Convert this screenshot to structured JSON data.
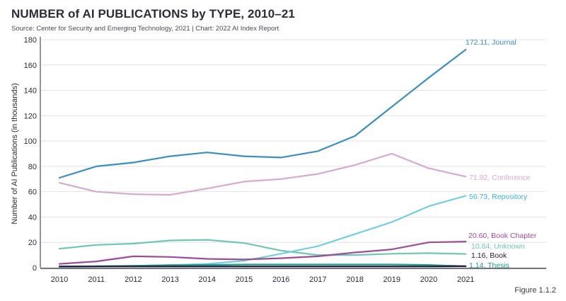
{
  "title": "NUMBER of AI PUBLICATIONS by TYPE, 2010–21",
  "subtitle": "Source: Center for Security and Emerging Technology, 2021 | Chart: 2022 AI Index Report",
  "footnote": "Figure 1.1.2",
  "chart_data": {
    "type": "line",
    "title": "NUMBER of AI PUBLICATIONS by TYPE, 2010–21",
    "xlabel": "",
    "ylabel": "Number of AI Publications (in thousands)",
    "x": [
      "2010",
      "2011",
      "2012",
      "2013",
      "2014",
      "2015",
      "2016",
      "2017",
      "2018",
      "2019",
      "2020",
      "2021"
    ],
    "ylim": [
      0,
      180
    ],
    "yticks": [
      0,
      20,
      40,
      60,
      80,
      100,
      120,
      140,
      160,
      180
    ],
    "grid": "horizontal",
    "legend": "end-of-line labels",
    "series": [
      {
        "name": "Journal",
        "end_label": "172.11, Journal",
        "color": "#3b8fc0",
        "label_color": "#3b8fc0",
        "values": [
          71,
          80,
          83,
          88,
          91,
          88,
          87,
          92,
          104,
          127,
          150,
          172.11
        ]
      },
      {
        "name": "Conference",
        "end_label": "71.92, Conference",
        "color": "#d7a9d1",
        "label_color": "#d7a9d1",
        "values": [
          67,
          60,
          58,
          57.5,
          62.5,
          68,
          70,
          74,
          81,
          90,
          78.5,
          71.92
        ]
      },
      {
        "name": "Repository",
        "end_label": "56.73, Repository",
        "color": "#73cde3",
        "label_color": "#3fb3d6",
        "values": [
          0.5,
          1,
          1.5,
          2,
          3,
          5.5,
          11,
          17,
          26.5,
          36,
          48.5,
          56.73
        ]
      },
      {
        "name": "Book Chapter",
        "end_label": "20.60, Book Chapter",
        "color": "#9c4d9a",
        "label_color": "#9c4d9a",
        "values": [
          3,
          5,
          9,
          8.5,
          7,
          6.5,
          7.5,
          9,
          12,
          14.5,
          20,
          20.6
        ]
      },
      {
        "name": "Unknown",
        "end_label": "10.84, Unknown",
        "color": "#6fc7b8",
        "label_color": "#6fc7b8",
        "values": [
          15,
          18,
          19,
          21.5,
          22,
          19.5,
          13.5,
          10,
          10,
          11,
          11.5,
          10.84
        ]
      },
      {
        "name": "Book",
        "end_label": "1.16, Book",
        "color": "#2a1a3a",
        "label_color": "#2a1a3a",
        "values": [
          1,
          1,
          1,
          1,
          1,
          1,
          1,
          1,
          1,
          1,
          1,
          1.16
        ]
      },
      {
        "name": "Thesis",
        "end_label": "1.14, Thesis",
        "color": "#1e9c8a",
        "label_color": "#1e9c8a",
        "values": [
          1,
          1.2,
          1.5,
          2,
          2.2,
          2.5,
          2.5,
          2.5,
          2.5,
          2.5,
          2.2,
          1.14
        ]
      }
    ]
  }
}
